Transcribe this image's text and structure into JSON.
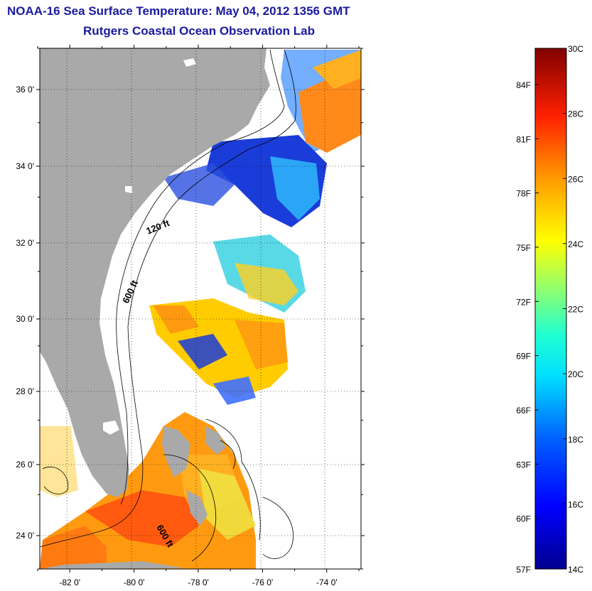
{
  "title": "NOAA-16 Sea Surface Temperature:  May 04, 2012 1356 GMT",
  "subtitle": "Rutgers Coastal Ocean Observation Lab",
  "map": {
    "lon_range": [
      -83,
      -73
    ],
    "lat_range": [
      23,
      37
    ],
    "lat_ticks": [
      {
        "value": 36,
        "label": "36 0'"
      },
      {
        "value": 34,
        "label": "34 0'"
      },
      {
        "value": 32,
        "label": "32 0'"
      },
      {
        "value": 30,
        "label": "30 0'"
      },
      {
        "value": 28,
        "label": "28 0'"
      },
      {
        "value": 26,
        "label": "26 0'"
      },
      {
        "value": 24,
        "label": "24 0'"
      }
    ],
    "lon_ticks": [
      {
        "value": -82,
        "label": "-82 0'"
      },
      {
        "value": -80,
        "label": "-80 0'"
      },
      {
        "value": -78,
        "label": "-78 0'"
      },
      {
        "value": -76,
        "label": "-76 0'"
      },
      {
        "value": -74,
        "label": "-74 0'"
      }
    ],
    "contour_labels": [
      "120 ft",
      "600 ft",
      "600 ft"
    ],
    "land_color": "#a9a9a9",
    "grid": true
  },
  "colorbar": {
    "range_c": [
      14,
      30
    ],
    "celsius_labels": [
      "30C",
      "28C",
      "26C",
      "24C",
      "22C",
      "20C",
      "18C",
      "16C",
      "14C"
    ],
    "fahrenheit_labels": [
      "84F",
      "81F",
      "78F",
      "75F",
      "72F",
      "69F",
      "66F",
      "63F",
      "60F",
      "57F"
    ]
  }
}
